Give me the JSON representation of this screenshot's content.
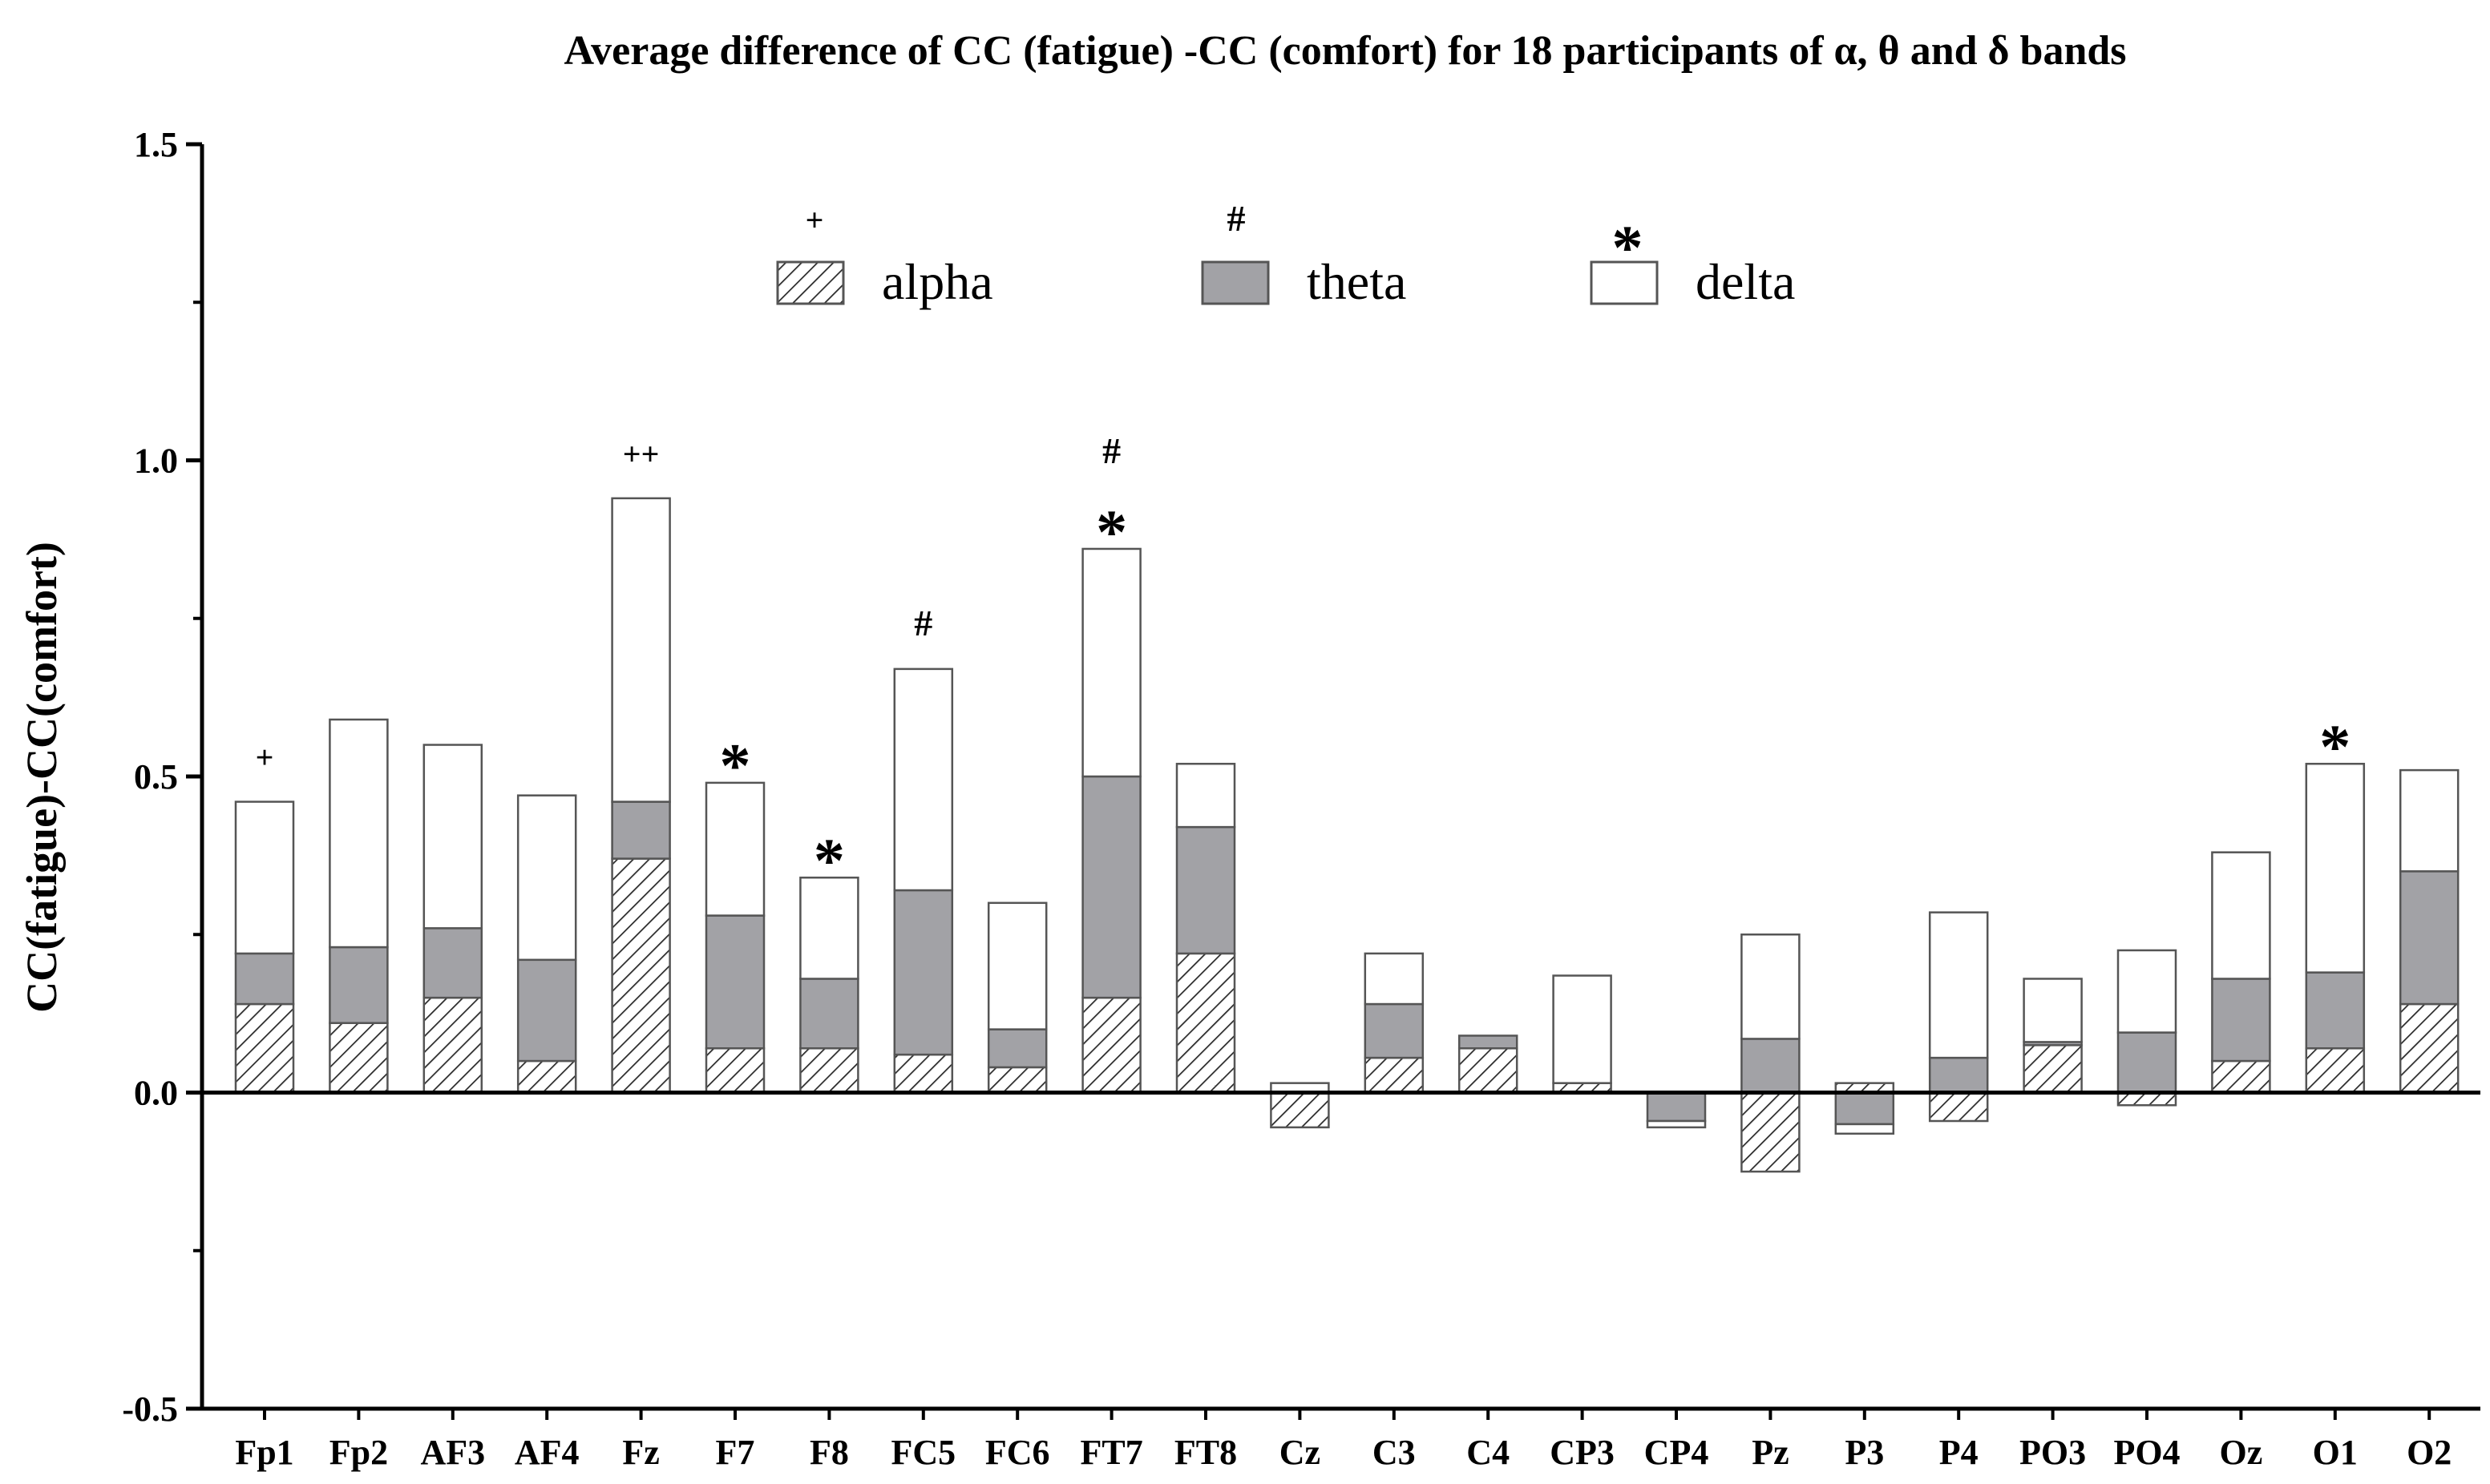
{
  "chart_data": {
    "type": "bar",
    "stacked": true,
    "title": "Average difference of CC (fatigue) -CC (comfort) for 18 participants of α,  θ and δ bands",
    "xlabel": "",
    "ylabel": "CC(fatigue)-CC(comfort)",
    "ylim": [
      -0.5,
      1.5
    ],
    "yticks": [
      "-0.5",
      "0.0",
      "0.5",
      "1.0",
      "1.5"
    ],
    "grid": false,
    "legend_position": "top",
    "categories": [
      "Fp1",
      "Fp2",
      "AF3",
      "AF4",
      "Fz",
      "F7",
      "F8",
      "FC5",
      "FC6",
      "FT7",
      "FT8",
      "Cz",
      "C3",
      "C4",
      "CP3",
      "CP4",
      "Pz",
      "P3",
      "P4",
      "PO3",
      "PO4",
      "Oz",
      "O1",
      "O2"
    ],
    "series": [
      {
        "name": "alpha",
        "pattern": "hatched",
        "significance_marker": "+",
        "values": [
          0.14,
          0.11,
          0.15,
          0.05,
          0.37,
          0.07,
          0.07,
          0.06,
          0.04,
          0.15,
          0.22,
          -0.055,
          0.055,
          0.07,
          0.015,
          0.0,
          -0.125,
          0.015,
          -0.045,
          0.075,
          -0.02,
          0.05,
          0.07,
          0.14
        ]
      },
      {
        "name": "theta",
        "color": "#a2a2a6",
        "significance_marker": "#",
        "values": [
          0.08,
          0.12,
          0.11,
          0.16,
          0.09,
          0.21,
          0.11,
          0.26,
          0.06,
          0.35,
          0.2,
          0.0,
          0.085,
          0.02,
          0.0,
          -0.045,
          0.085,
          -0.05,
          0.055,
          0.005,
          0.095,
          0.13,
          0.12,
          0.21
        ]
      },
      {
        "name": "delta",
        "color": "#ffffff",
        "significance_marker": "*",
        "values": [
          0.24,
          0.36,
          0.29,
          0.26,
          0.48,
          0.21,
          0.16,
          0.35,
          0.2,
          0.36,
          0.1,
          0.015,
          0.08,
          0.0,
          0.17,
          -0.01,
          0.165,
          -0.015,
          0.23,
          0.1,
          0.13,
          0.2,
          0.33,
          0.16
        ]
      }
    ],
    "annotations": [
      {
        "category": "Fp1",
        "marks": [
          "+"
        ]
      },
      {
        "category": "Fz",
        "marks": [
          "++"
        ]
      },
      {
        "category": "F7",
        "marks": [
          "*"
        ]
      },
      {
        "category": "F8",
        "marks": [
          "*"
        ]
      },
      {
        "category": "FC5",
        "marks": [
          "#"
        ]
      },
      {
        "category": "FT7",
        "marks": [
          "#",
          "*"
        ]
      },
      {
        "category": "O1",
        "marks": [
          "*"
        ]
      }
    ]
  }
}
